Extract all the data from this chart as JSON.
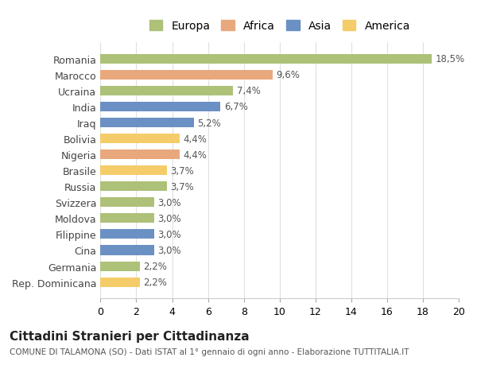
{
  "countries": [
    "Romania",
    "Marocco",
    "Ucraina",
    "India",
    "Iraq",
    "Bolivia",
    "Nigeria",
    "Brasile",
    "Russia",
    "Svizzera",
    "Moldova",
    "Filippine",
    "Cina",
    "Germania",
    "Rep. Dominicana"
  ],
  "values": [
    18.5,
    9.6,
    7.4,
    6.7,
    5.2,
    4.4,
    4.4,
    3.7,
    3.7,
    3.0,
    3.0,
    3.0,
    3.0,
    2.2,
    2.2
  ],
  "labels": [
    "18,5%",
    "9,6%",
    "7,4%",
    "6,7%",
    "5,2%",
    "4,4%",
    "4,4%",
    "3,7%",
    "3,7%",
    "3,0%",
    "3,0%",
    "3,0%",
    "3,0%",
    "2,2%",
    "2,2%"
  ],
  "continents": [
    "Europa",
    "Africa",
    "Europa",
    "Asia",
    "Asia",
    "America",
    "Africa",
    "America",
    "Europa",
    "Europa",
    "Europa",
    "Asia",
    "Asia",
    "Europa",
    "America"
  ],
  "continent_colors": {
    "Europa": "#adc178",
    "Africa": "#e8a87c",
    "Asia": "#6b90c4",
    "America": "#f5cc6a"
  },
  "legend_order": [
    "Europa",
    "Africa",
    "Asia",
    "America"
  ],
  "title": "Cittadini Stranieri per Cittadinanza",
  "subtitle": "COMUNE DI TALAMONA (SO) - Dati ISTAT al 1° gennaio di ogni anno - Elaborazione TUTTITALIA.IT",
  "xlim": [
    0,
    20
  ],
  "xticks": [
    0,
    2,
    4,
    6,
    8,
    10,
    12,
    14,
    16,
    18,
    20
  ],
  "bg_color": "#ffffff",
  "grid_color": "#e0e0e0",
  "bar_height": 0.6
}
